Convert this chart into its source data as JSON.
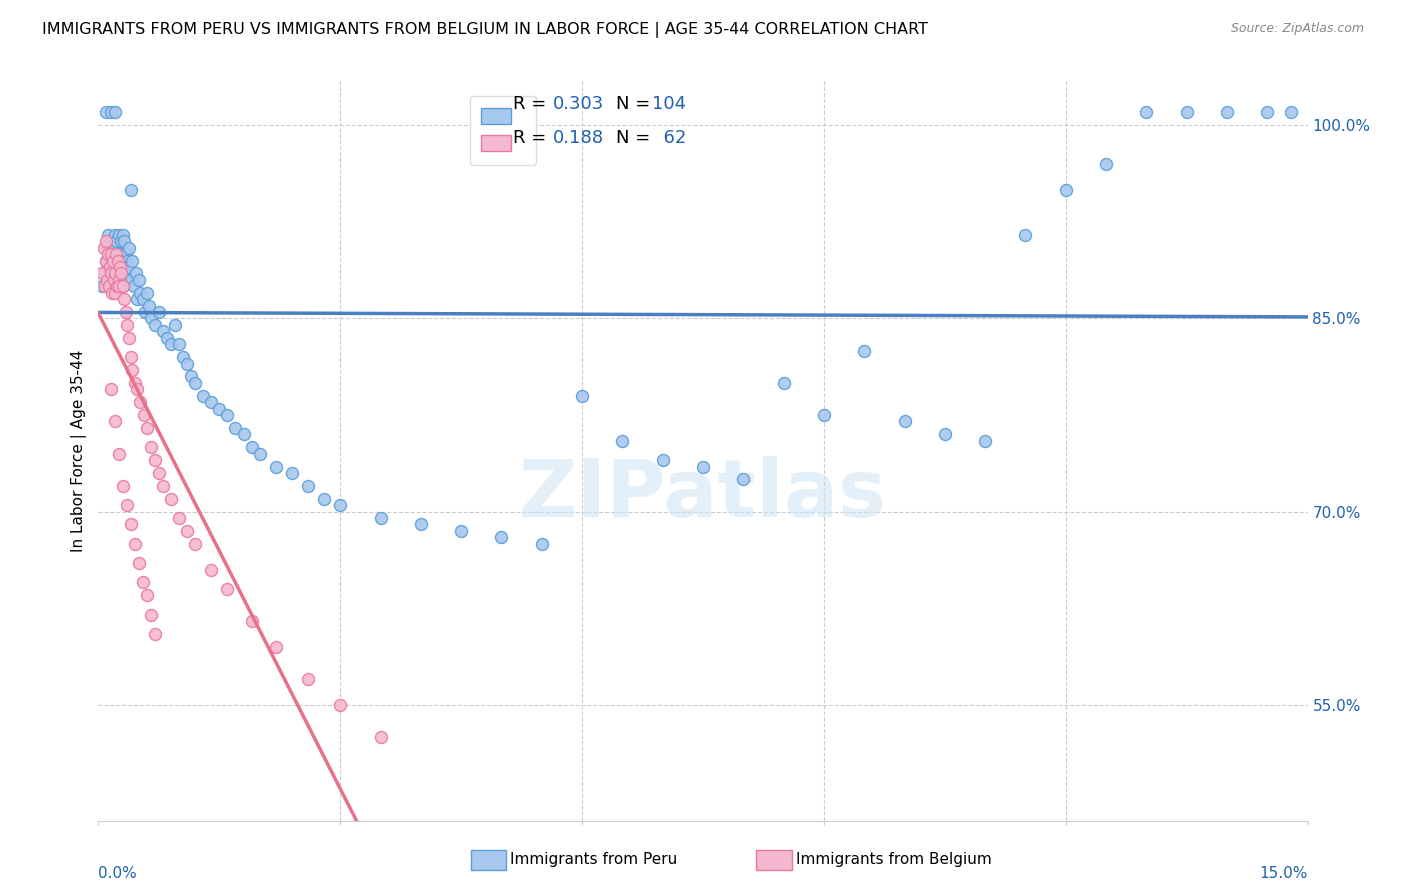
{
  "title": "IMMIGRANTS FROM PERU VS IMMIGRANTS FROM BELGIUM IN LABOR FORCE | AGE 35-44 CORRELATION CHART",
  "source": "Source: ZipAtlas.com",
  "ylabel": "In Labor Force | Age 35-44",
  "y_ticks": [
    55.0,
    70.0,
    85.0,
    100.0
  ],
  "y_tick_labels": [
    "55.0%",
    "70.0%",
    "85.0%",
    "100.0%"
  ],
  "x_range": [
    0.0,
    15.0
  ],
  "y_range": [
    46.0,
    103.5
  ],
  "peru_R": 0.303,
  "peru_N": 104,
  "belgium_R": 0.188,
  "belgium_N": 62,
  "peru_color": "#a8c8f0",
  "peru_edge_color": "#5a9fd4",
  "peru_line_color": "#4a7fc1",
  "belgium_color": "#f5b8d0",
  "belgium_edge_color": "#e87aa0",
  "belgium_line_color": "#e8708a",
  "legend_R_color": "#2060b0",
  "peru_x": [
    0.05,
    0.08,
    0.1,
    0.12,
    0.12,
    0.14,
    0.14,
    0.15,
    0.16,
    0.16,
    0.17,
    0.18,
    0.18,
    0.19,
    0.2,
    0.2,
    0.21,
    0.22,
    0.22,
    0.23,
    0.24,
    0.24,
    0.25,
    0.25,
    0.26,
    0.27,
    0.28,
    0.28,
    0.29,
    0.3,
    0.3,
    0.31,
    0.32,
    0.32,
    0.33,
    0.34,
    0.35,
    0.36,
    0.37,
    0.38,
    0.4,
    0.42,
    0.44,
    0.46,
    0.48,
    0.5,
    0.52,
    0.55,
    0.58,
    0.6,
    0.63,
    0.65,
    0.7,
    0.75,
    0.8,
    0.85,
    0.9,
    0.95,
    1.0,
    1.05,
    1.1,
    1.15,
    1.2,
    1.3,
    1.4,
    1.5,
    1.6,
    1.7,
    1.8,
    1.9,
    2.0,
    2.2,
    2.4,
    2.6,
    2.8,
    3.0,
    3.5,
    4.0,
    4.5,
    5.0,
    5.5,
    6.0,
    6.5,
    7.0,
    7.5,
    8.0,
    8.5,
    9.0,
    9.5,
    10.0,
    10.5,
    11.0,
    11.5,
    12.0,
    12.5,
    13.0,
    13.5,
    14.0,
    14.5,
    14.8,
    0.1,
    0.15,
    0.2,
    0.4
  ],
  "peru_y": [
    87.5,
    88.5,
    89.5,
    90.5,
    91.5,
    88.0,
    91.0,
    89.5,
    87.5,
    90.5,
    89.0,
    88.0,
    91.0,
    89.5,
    88.0,
    90.5,
    91.5,
    89.0,
    91.0,
    88.5,
    90.0,
    87.5,
    89.0,
    91.5,
    88.5,
    90.0,
    89.0,
    91.0,
    88.0,
    89.5,
    91.5,
    87.5,
    89.0,
    91.0,
    88.5,
    90.0,
    89.5,
    88.0,
    89.0,
    90.5,
    88.0,
    89.5,
    87.5,
    88.5,
    86.5,
    88.0,
    87.0,
    86.5,
    85.5,
    87.0,
    86.0,
    85.0,
    84.5,
    85.5,
    84.0,
    83.5,
    83.0,
    84.5,
    83.0,
    82.0,
    81.5,
    80.5,
    80.0,
    79.0,
    78.5,
    78.0,
    77.5,
    76.5,
    76.0,
    75.0,
    74.5,
    73.5,
    73.0,
    72.0,
    71.0,
    70.5,
    69.5,
    69.0,
    68.5,
    68.0,
    67.5,
    79.0,
    75.5,
    74.0,
    73.5,
    72.5,
    80.0,
    77.5,
    82.5,
    77.0,
    76.0,
    75.5,
    91.5,
    95.0,
    97.0,
    101.0,
    101.0,
    101.0,
    101.0,
    101.0,
    101.0,
    101.0,
    101.0,
    95.0
  ],
  "belgium_x": [
    0.05,
    0.07,
    0.08,
    0.09,
    0.1,
    0.11,
    0.12,
    0.13,
    0.14,
    0.15,
    0.16,
    0.17,
    0.18,
    0.19,
    0.2,
    0.21,
    0.22,
    0.23,
    0.24,
    0.25,
    0.26,
    0.27,
    0.28,
    0.3,
    0.32,
    0.34,
    0.36,
    0.38,
    0.4,
    0.42,
    0.45,
    0.48,
    0.52,
    0.56,
    0.6,
    0.65,
    0.7,
    0.75,
    0.8,
    0.9,
    1.0,
    1.1,
    1.2,
    1.4,
    1.6,
    1.9,
    2.2,
    2.6,
    3.0,
    3.5,
    0.15,
    0.2,
    0.25,
    0.3,
    0.35,
    0.4,
    0.45,
    0.5,
    0.55,
    0.6,
    0.65,
    0.7
  ],
  "belgium_y": [
    88.5,
    90.5,
    87.5,
    89.5,
    91.0,
    88.0,
    90.0,
    87.5,
    89.0,
    88.5,
    90.0,
    87.0,
    89.5,
    88.0,
    87.0,
    88.5,
    90.0,
    87.5,
    89.5,
    88.0,
    87.5,
    89.0,
    88.5,
    87.5,
    86.5,
    85.5,
    84.5,
    83.5,
    82.0,
    81.0,
    80.0,
    79.5,
    78.5,
    77.5,
    76.5,
    75.0,
    74.0,
    73.0,
    72.0,
    71.0,
    69.5,
    68.5,
    67.5,
    65.5,
    64.0,
    61.5,
    59.5,
    57.0,
    55.0,
    52.5,
    79.5,
    77.0,
    74.5,
    72.0,
    70.5,
    69.0,
    67.5,
    66.0,
    64.5,
    63.5,
    62.0,
    60.5
  ]
}
